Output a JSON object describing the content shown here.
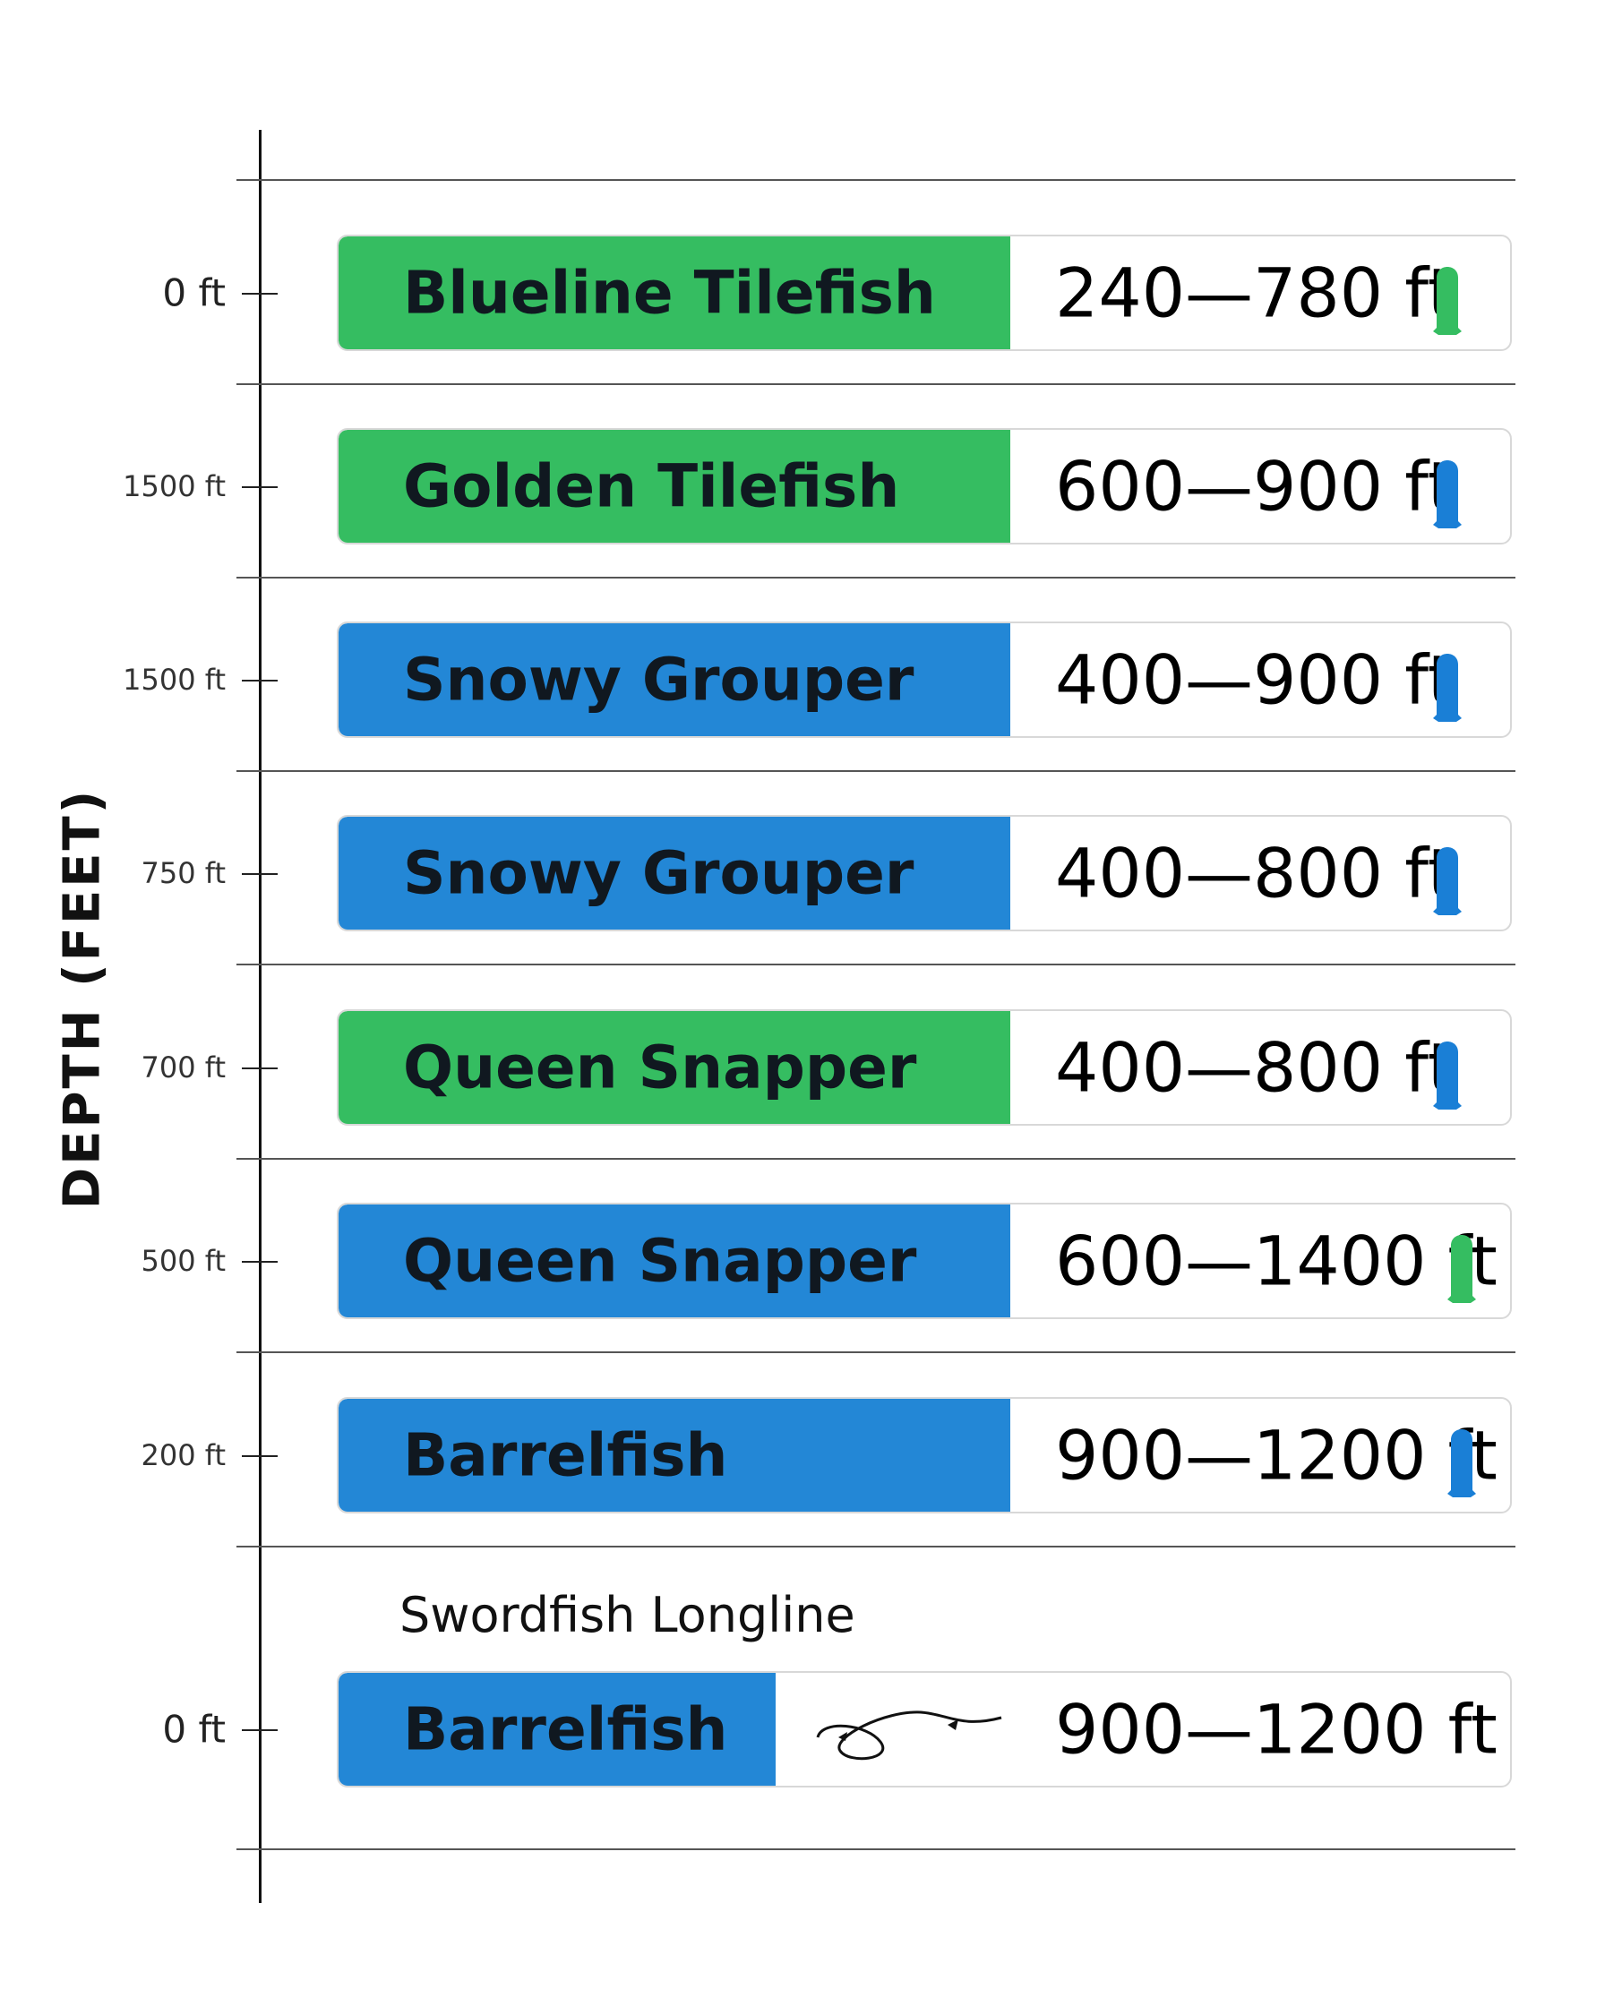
{
  "chart_data": {
    "type": "bar",
    "title": "",
    "xlabel": "",
    "ylabel": "DEPTH (FEET)",
    "y_tick_labels": [
      "0 ft",
      "1500 ft",
      "1500 ft",
      "750 ft",
      "700 ft",
      "500 ft",
      "200 ft",
      "0 ft"
    ],
    "section_label": "Swordfish Longline",
    "categories": [
      "Blueline Tilefish",
      "Golden Tilefish",
      "Snowy Grouper",
      "Snowy Grouper",
      "Queen Snapper",
      "Queen Snapper",
      "Barrelfish",
      "Barrelfish"
    ],
    "range_labels": [
      "240—780 ft",
      "600—900 ft",
      "400—900 ft",
      "400—800 ft",
      "400—800 ft",
      "600—1400 ft",
      "900—1200 ft",
      "900—1200 ft"
    ],
    "series": [
      {
        "values": [
          [
            240,
            780
          ],
          [
            600,
            900
          ],
          [
            400,
            900
          ],
          [
            400,
            800
          ],
          [
            400,
            800
          ],
          [
            600,
            1400
          ],
          [
            900,
            1200
          ],
          [
            900,
            1200
          ]
        ]
      }
    ],
    "bar_colors": [
      "#35bd61",
      "#35bd61",
      "#2387d6",
      "#2387d6",
      "#35bd61",
      "#2387d6",
      "#2387d6",
      "#2387d6"
    ],
    "marker_colors": [
      "#35bd61",
      "#1a7fd6",
      "#1a7fd6",
      "#1a7fd6",
      "#1a7fd6",
      "#35bd61",
      "#1a7fd6",
      ""
    ],
    "marker_icons": [
      "bottle-icon",
      "bottle-icon",
      "bottle-icon",
      "bottle-icon",
      "bottle-icon",
      "bottle-icon",
      "bottle-icon",
      "longline-icon"
    ],
    "grid": true
  }
}
